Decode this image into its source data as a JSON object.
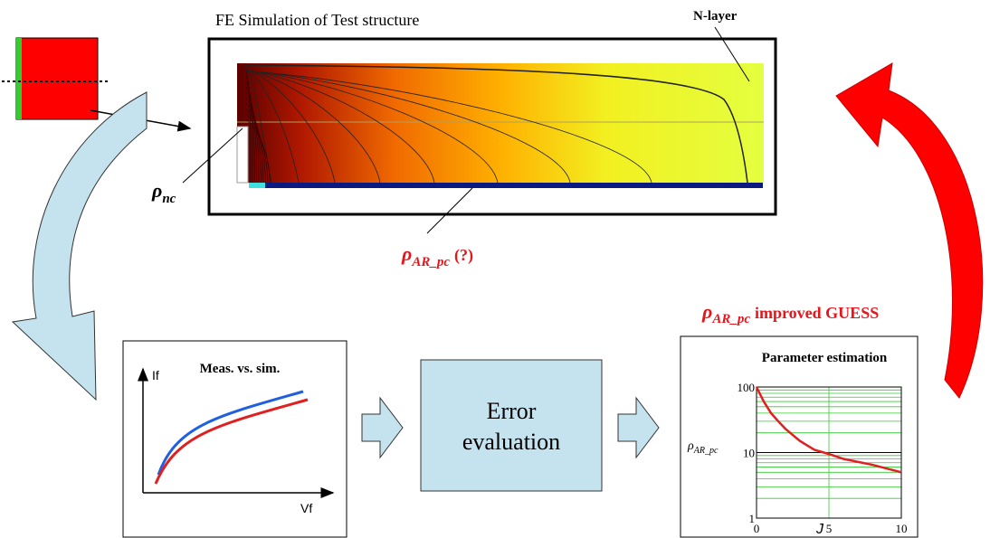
{
  "simulation": {
    "title": "FE Simulation of Test structure",
    "n_layer_label": "N-layer",
    "rho_nc": {
      "symbol": "ρ",
      "subscript": "nc"
    },
    "rho_ar_pc": {
      "symbol": "ρ",
      "subscript": "AR_pc",
      "suffix": "(?)"
    }
  },
  "guess_label": {
    "symbol": "ρ",
    "subscript": "AR_pc",
    "text": "improved GUESS"
  },
  "meas_box": {
    "title": "Meas. vs. sim.",
    "y_label": "If",
    "x_label": "Vf"
  },
  "error_box": {
    "lines": [
      "Error",
      "evaluation"
    ]
  },
  "chart_data": {
    "type": "line",
    "title": "Parameter estimation",
    "y_label": {
      "symbol": "ρ",
      "subscript": "AR_pc"
    },
    "x_label": "J",
    "x": [
      0,
      0.5,
      1,
      1.5,
      2,
      3,
      4,
      5,
      6,
      8,
      10
    ],
    "values": [
      100,
      60,
      40,
      30,
      23,
      15,
      11,
      9.5,
      8,
      6.5,
      5
    ],
    "color": "#e02020",
    "xlim": [
      0,
      10
    ],
    "ylim": [
      1,
      100
    ],
    "xticks": [
      0,
      5,
      10
    ],
    "yticks": [
      1,
      10,
      100
    ],
    "minor_yticks": [
      2,
      3,
      4,
      5,
      6,
      7,
      8,
      9,
      20,
      30,
      40,
      50,
      60,
      70,
      80,
      90
    ],
    "log_y": true,
    "grid": true
  }
}
